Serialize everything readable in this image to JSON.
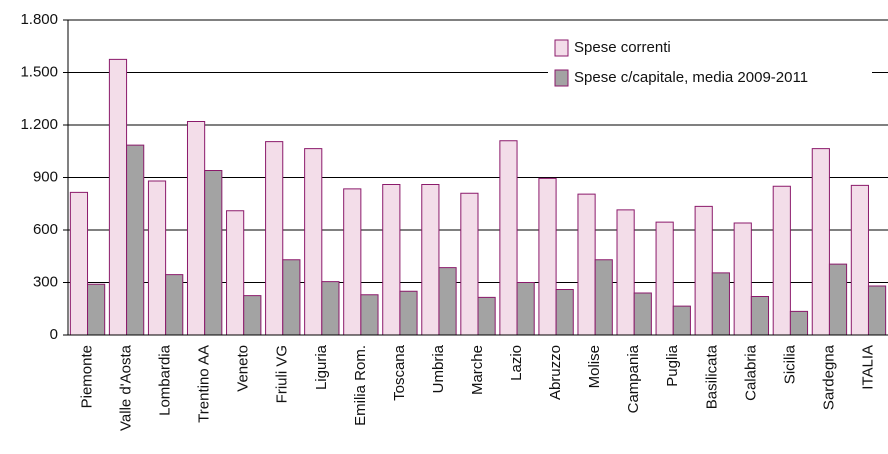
{
  "chart_data": {
    "type": "bar",
    "categories": [
      "Piemonte",
      "Valle d'Aosta",
      "Lombardia",
      "Trentino AA",
      "Veneto",
      "Friuli VG",
      "Liguria",
      "Emilia Rom.",
      "Toscana",
      "Umbria",
      "Marche",
      "Lazio",
      "Abruzzo",
      "Molise",
      "Campania",
      "Puglia",
      "Basilicata",
      "Calabria",
      "Sicilia",
      "Sardegna",
      "ITALIA"
    ],
    "series": [
      {
        "name": "Spese correnti",
        "color": "#f3dde9",
        "values": [
          815,
          1575,
          880,
          1220,
          710,
          1105,
          1065,
          835,
          860,
          860,
          810,
          1110,
          895,
          805,
          715,
          645,
          735,
          640,
          850,
          1065,
          855
        ]
      },
      {
        "name": "Spese c/capitale, media 2009-2011",
        "color": "#a3a3a3",
        "values": [
          290,
          1085,
          345,
          940,
          225,
          430,
          305,
          230,
          250,
          385,
          215,
          300,
          260,
          430,
          240,
          165,
          355,
          220,
          135,
          405,
          280
        ]
      }
    ],
    "ylim": [
      0,
      1800
    ],
    "yticks": [
      0,
      300,
      600,
      900,
      {
        "value": 1200,
        "label": "1.200"
      },
      {
        "value": 1500,
        "label": "1.500"
      },
      {
        "value": 1800,
        "label": "1.800"
      }
    ],
    "grid": true,
    "legend": "upper right"
  }
}
